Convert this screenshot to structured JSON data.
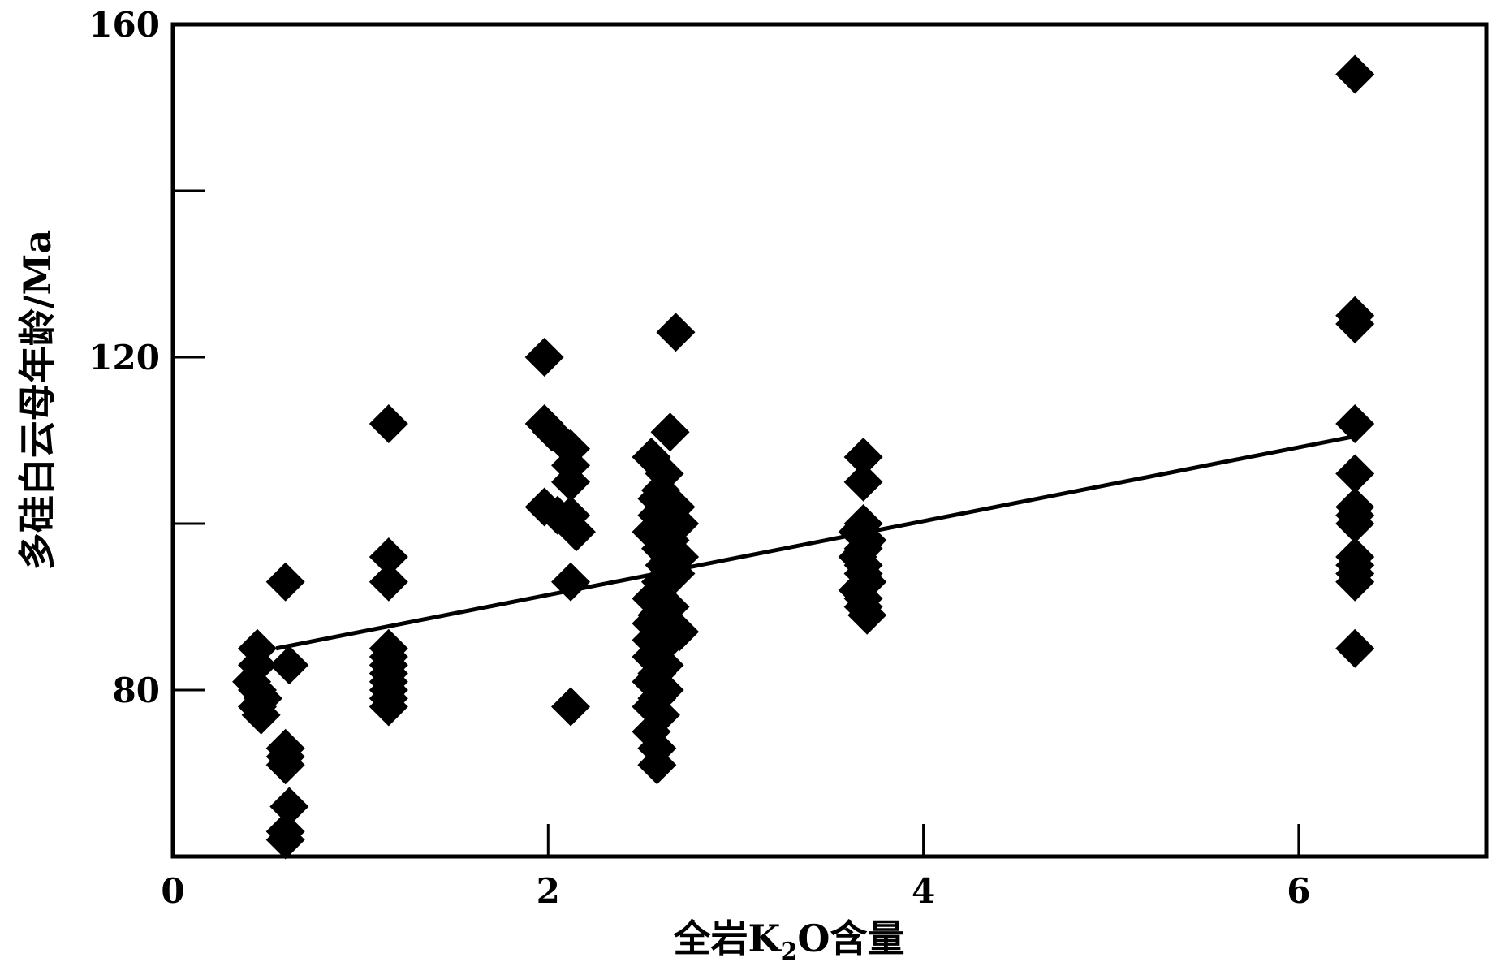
{
  "chart_data": {
    "type": "scatter",
    "title": "",
    "xlabel_parts": {
      "a": "全岩K",
      "sub": "2",
      "b": "O含量"
    },
    "ylabel": "多硅白云母年龄/Ma",
    "xlim": [
      0,
      7
    ],
    "ylim": [
      60,
      160
    ],
    "x_ticks": [
      0,
      2,
      4,
      6
    ],
    "x_tick_labels": [
      "0",
      "2",
      "4",
      "6"
    ],
    "y_ticks": [
      80,
      100,
      120,
      140,
      160
    ],
    "y_tick_labels": {
      "80": "80",
      "120": "120",
      "160": "160"
    },
    "grid": false,
    "legend": "none",
    "marker": "diamond",
    "colors": {
      "marker": "#000000",
      "line": "#000000",
      "axes": "#000000"
    },
    "points": [
      [
        0.45,
        85
      ],
      [
        0.45,
        83
      ],
      [
        0.42,
        81
      ],
      [
        0.45,
        80
      ],
      [
        0.48,
        79
      ],
      [
        0.45,
        78
      ],
      [
        0.47,
        77
      ],
      [
        0.62,
        83
      ],
      [
        0.6,
        93
      ],
      [
        0.6,
        73
      ],
      [
        0.6,
        72
      ],
      [
        0.6,
        71
      ],
      [
        0.62,
        66
      ],
      [
        0.6,
        63
      ],
      [
        0.6,
        62
      ],
      [
        1.15,
        112
      ],
      [
        1.15,
        96
      ],
      [
        1.15,
        93
      ],
      [
        1.15,
        85
      ],
      [
        1.15,
        84
      ],
      [
        1.15,
        83
      ],
      [
        1.15,
        82
      ],
      [
        1.15,
        81
      ],
      [
        1.15,
        80
      ],
      [
        1.15,
        79
      ],
      [
        1.15,
        78
      ],
      [
        1.98,
        120
      ],
      [
        1.98,
        112
      ],
      [
        2.02,
        111
      ],
      [
        2.12,
        109
      ],
      [
        2.12,
        107
      ],
      [
        2.12,
        105
      ],
      [
        1.98,
        102
      ],
      [
        2.05,
        101
      ],
      [
        2.12,
        101
      ],
      [
        2.15,
        99
      ],
      [
        2.12,
        93
      ],
      [
        2.12,
        78
      ],
      [
        2.68,
        123
      ],
      [
        2.65,
        111
      ],
      [
        2.55,
        108
      ],
      [
        2.62,
        106
      ],
      [
        2.6,
        104
      ],
      [
        2.58,
        103
      ],
      [
        2.68,
        102
      ],
      [
        2.58,
        101
      ],
      [
        2.6,
        100
      ],
      [
        2.7,
        100
      ],
      [
        2.55,
        99
      ],
      [
        2.65,
        98
      ],
      [
        2.6,
        97
      ],
      [
        2.7,
        96
      ],
      [
        2.62,
        95
      ],
      [
        2.68,
        94
      ],
      [
        2.6,
        93
      ],
      [
        2.55,
        91
      ],
      [
        2.65,
        90
      ],
      [
        2.58,
        89
      ],
      [
        2.55,
        88
      ],
      [
        2.62,
        87
      ],
      [
        2.7,
        87
      ],
      [
        2.55,
        86
      ],
      [
        2.6,
        85
      ],
      [
        2.55,
        84
      ],
      [
        2.62,
        83
      ],
      [
        2.58,
        82
      ],
      [
        2.55,
        81
      ],
      [
        2.62,
        80
      ],
      [
        2.58,
        79
      ],
      [
        2.55,
        78
      ],
      [
        2.6,
        77
      ],
      [
        2.55,
        75
      ],
      [
        2.58,
        73
      ],
      [
        2.58,
        71
      ],
      [
        3.68,
        108
      ],
      [
        3.68,
        105
      ],
      [
        3.68,
        100
      ],
      [
        3.65,
        99
      ],
      [
        3.7,
        98
      ],
      [
        3.68,
        97
      ],
      [
        3.65,
        96
      ],
      [
        3.68,
        95
      ],
      [
        3.68,
        94
      ],
      [
        3.7,
        93
      ],
      [
        3.65,
        92
      ],
      [
        3.68,
        91
      ],
      [
        3.68,
        90
      ],
      [
        3.7,
        89
      ],
      [
        6.3,
        154
      ],
      [
        6.3,
        125
      ],
      [
        6.3,
        124
      ],
      [
        6.3,
        112
      ],
      [
        6.3,
        106
      ],
      [
        6.3,
        102
      ],
      [
        6.3,
        101
      ],
      [
        6.3,
        100
      ],
      [
        6.3,
        96
      ],
      [
        6.3,
        95
      ],
      [
        6.3,
        94
      ],
      [
        6.3,
        93
      ],
      [
        6.3,
        85
      ]
    ],
    "fit_line": {
      "x": [
        0.55,
        6.3
      ],
      "y": [
        85,
        110.5
      ]
    }
  }
}
